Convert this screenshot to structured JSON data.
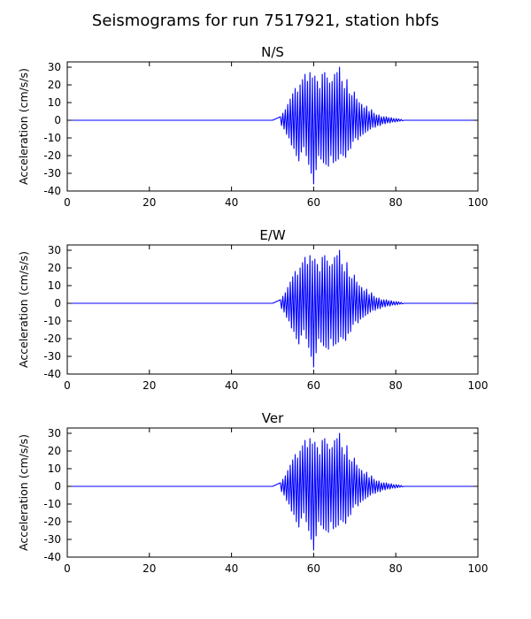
{
  "figure": {
    "title": "Seismograms for run 7517921, station hbfs"
  },
  "chart_data": [
    {
      "type": "line",
      "title": "N/S",
      "xlabel": "",
      "ylabel": "Acceleration (cm/s/s)",
      "xlim": [
        0,
        100
      ],
      "ylim": [
        -40,
        33
      ],
      "xticks": [
        0,
        20,
        40,
        60,
        80,
        100
      ],
      "yticks": [
        -40,
        -30,
        -20,
        -10,
        0,
        10,
        20,
        30
      ],
      "grid": false,
      "color": "#0000ff",
      "series": [
        {
          "x": [
            0,
            50,
            51.9,
            52.2,
            52.5,
            52.8,
            53.1,
            53.4,
            53.7,
            54.0,
            54.3,
            54.6,
            54.9,
            55.2,
            55.5,
            55.8,
            56.1,
            56.4,
            56.7,
            57.0,
            57.3,
            57.6,
            57.9,
            58.2,
            58.5,
            58.8,
            59.1,
            59.4,
            59.7,
            60.0,
            60.3,
            60.6,
            60.9,
            61.2,
            61.5,
            61.8,
            62.1,
            62.4,
            62.7,
            63.0,
            63.3,
            63.6,
            63.9,
            64.2,
            64.5,
            64.8,
            65.1,
            65.4,
            65.7,
            66.0,
            66.3,
            66.6,
            66.9,
            67.2,
            67.5,
            67.8,
            68.1,
            68.4,
            68.7,
            69.0,
            69.3,
            69.6,
            69.9,
            70.2,
            70.5,
            70.8,
            71.1,
            71.4,
            71.7,
            72.0,
            72.3,
            72.6,
            72.9,
            73.2,
            73.5,
            73.8,
            74.1,
            74.4,
            74.7,
            75.0,
            75.3,
            75.6,
            75.9,
            76.2,
            76.5,
            76.8,
            77.1,
            77.4,
            77.7,
            78.0,
            78.3,
            78.6,
            78.9,
            79.2,
            79.5,
            79.8,
            80.1,
            80.4,
            80.7,
            81.0,
            81.3,
            81.6,
            82.0,
            100
          ],
          "y": [
            0,
            0,
            2,
            -3,
            4,
            -5,
            6,
            -8,
            9,
            -10,
            12,
            -14,
            15,
            -16,
            18,
            -20,
            16,
            -23,
            20,
            -18,
            23,
            -15,
            26,
            -20,
            22,
            -25,
            27,
            -30,
            24,
            -36,
            25,
            -28,
            22,
            -20,
            18,
            -22,
            26,
            -24,
            27,
            -25,
            24,
            -26,
            21,
            -20,
            22,
            -24,
            26,
            -23,
            27,
            -22,
            30,
            -19,
            22,
            -20,
            18,
            -21,
            23,
            -17,
            15,
            -16,
            14,
            -12,
            16,
            -10,
            12,
            -11,
            10,
            -9,
            9,
            -8,
            7,
            -7,
            8,
            -6,
            5,
            -5,
            6,
            -4,
            4,
            -4,
            3,
            -3,
            3,
            -3,
            2,
            -2,
            2,
            -2,
            2,
            -1.5,
            1.5,
            -1.5,
            1.5,
            -1,
            1,
            -1,
            1,
            -0.8,
            0.8,
            -0.5,
            0.5,
            -0.3,
            0,
            0
          ]
        }
      ]
    },
    {
      "type": "line",
      "title": "E/W",
      "xlabel": "",
      "ylabel": "Acceleration (cm/s/s)",
      "xlim": [
        0,
        100
      ],
      "ylim": [
        -40,
        33
      ],
      "xticks": [
        0,
        20,
        40,
        60,
        80,
        100
      ],
      "yticks": [
        -40,
        -30,
        -20,
        -10,
        0,
        10,
        20,
        30
      ],
      "grid": false,
      "color": "#0000ff",
      "series": [
        {
          "x": [
            0,
            50,
            51.9,
            52.2,
            52.5,
            52.8,
            53.1,
            53.4,
            53.7,
            54.0,
            54.3,
            54.6,
            54.9,
            55.2,
            55.5,
            55.8,
            56.1,
            56.4,
            56.7,
            57.0,
            57.3,
            57.6,
            57.9,
            58.2,
            58.5,
            58.8,
            59.1,
            59.4,
            59.7,
            60.0,
            60.3,
            60.6,
            60.9,
            61.2,
            61.5,
            61.8,
            62.1,
            62.4,
            62.7,
            63.0,
            63.3,
            63.6,
            63.9,
            64.2,
            64.5,
            64.8,
            65.1,
            65.4,
            65.7,
            66.0,
            66.3,
            66.6,
            66.9,
            67.2,
            67.5,
            67.8,
            68.1,
            68.4,
            68.7,
            69.0,
            69.3,
            69.6,
            69.9,
            70.2,
            70.5,
            70.8,
            71.1,
            71.4,
            71.7,
            72.0,
            72.3,
            72.6,
            72.9,
            73.2,
            73.5,
            73.8,
            74.1,
            74.4,
            74.7,
            75.0,
            75.3,
            75.6,
            75.9,
            76.2,
            76.5,
            76.8,
            77.1,
            77.4,
            77.7,
            78.0,
            78.3,
            78.6,
            78.9,
            79.2,
            79.5,
            79.8,
            80.1,
            80.4,
            80.7,
            81.0,
            81.3,
            81.6,
            82.0,
            100
          ],
          "y": [
            0,
            0,
            2,
            -3,
            4,
            -5,
            6,
            -8,
            9,
            -10,
            12,
            -14,
            15,
            -16,
            18,
            -20,
            16,
            -23,
            20,
            -18,
            23,
            -15,
            26,
            -20,
            22,
            -25,
            27,
            -30,
            24,
            -36,
            25,
            -28,
            22,
            -20,
            18,
            -22,
            26,
            -24,
            27,
            -25,
            24,
            -26,
            21,
            -20,
            22,
            -24,
            26,
            -23,
            27,
            -22,
            30,
            -19,
            22,
            -20,
            18,
            -21,
            23,
            -17,
            15,
            -16,
            14,
            -12,
            16,
            -10,
            12,
            -11,
            10,
            -9,
            9,
            -8,
            7,
            -7,
            8,
            -6,
            5,
            -5,
            6,
            -4,
            4,
            -4,
            3,
            -3,
            3,
            -3,
            2,
            -2,
            2,
            -2,
            2,
            -1.5,
            1.5,
            -1.5,
            1.5,
            -1,
            1,
            -1,
            1,
            -0.8,
            0.8,
            -0.5,
            0.5,
            -0.3,
            0,
            0
          ]
        }
      ]
    },
    {
      "type": "line",
      "title": "Ver",
      "xlabel": "",
      "ylabel": "Acceleration (cm/s/s)",
      "xlim": [
        0,
        100
      ],
      "ylim": [
        -40,
        33
      ],
      "xticks": [
        0,
        20,
        40,
        60,
        80,
        100
      ],
      "yticks": [
        -40,
        -30,
        -20,
        -10,
        0,
        10,
        20,
        30
      ],
      "grid": false,
      "color": "#0000ff",
      "series": [
        {
          "x": [
            0,
            50,
            51.9,
            52.2,
            52.5,
            52.8,
            53.1,
            53.4,
            53.7,
            54.0,
            54.3,
            54.6,
            54.9,
            55.2,
            55.5,
            55.8,
            56.1,
            56.4,
            56.7,
            57.0,
            57.3,
            57.6,
            57.9,
            58.2,
            58.5,
            58.8,
            59.1,
            59.4,
            59.7,
            60.0,
            60.3,
            60.6,
            60.9,
            61.2,
            61.5,
            61.8,
            62.1,
            62.4,
            62.7,
            63.0,
            63.3,
            63.6,
            63.9,
            64.2,
            64.5,
            64.8,
            65.1,
            65.4,
            65.7,
            66.0,
            66.3,
            66.6,
            66.9,
            67.2,
            67.5,
            67.8,
            68.1,
            68.4,
            68.7,
            69.0,
            69.3,
            69.6,
            69.9,
            70.2,
            70.5,
            70.8,
            71.1,
            71.4,
            71.7,
            72.0,
            72.3,
            72.6,
            72.9,
            73.2,
            73.5,
            73.8,
            74.1,
            74.4,
            74.7,
            75.0,
            75.3,
            75.6,
            75.9,
            76.2,
            76.5,
            76.8,
            77.1,
            77.4,
            77.7,
            78.0,
            78.3,
            78.6,
            78.9,
            79.2,
            79.5,
            79.8,
            80.1,
            80.4,
            80.7,
            81.0,
            81.3,
            81.6,
            82.0,
            100
          ],
          "y": [
            0,
            0,
            2,
            -3,
            4,
            -5,
            6,
            -8,
            9,
            -10,
            12,
            -14,
            15,
            -16,
            18,
            -20,
            16,
            -23,
            20,
            -18,
            23,
            -15,
            26,
            -20,
            22,
            -25,
            27,
            -30,
            24,
            -36,
            25,
            -28,
            22,
            -20,
            18,
            -22,
            26,
            -24,
            27,
            -25,
            24,
            -26,
            21,
            -20,
            22,
            -24,
            26,
            -23,
            27,
            -22,
            30,
            -19,
            22,
            -20,
            18,
            -21,
            23,
            -17,
            15,
            -16,
            14,
            -12,
            16,
            -10,
            12,
            -11,
            10,
            -9,
            9,
            -8,
            7,
            -7,
            8,
            -6,
            5,
            -5,
            6,
            -4,
            4,
            -4,
            3,
            -3,
            3,
            -3,
            2,
            -2,
            2,
            -2,
            2,
            -1.5,
            1.5,
            -1.5,
            1.5,
            -1,
            1,
            -1,
            1,
            -0.8,
            0.8,
            -0.5,
            0.5,
            -0.3,
            0,
            0
          ]
        }
      ]
    }
  ]
}
